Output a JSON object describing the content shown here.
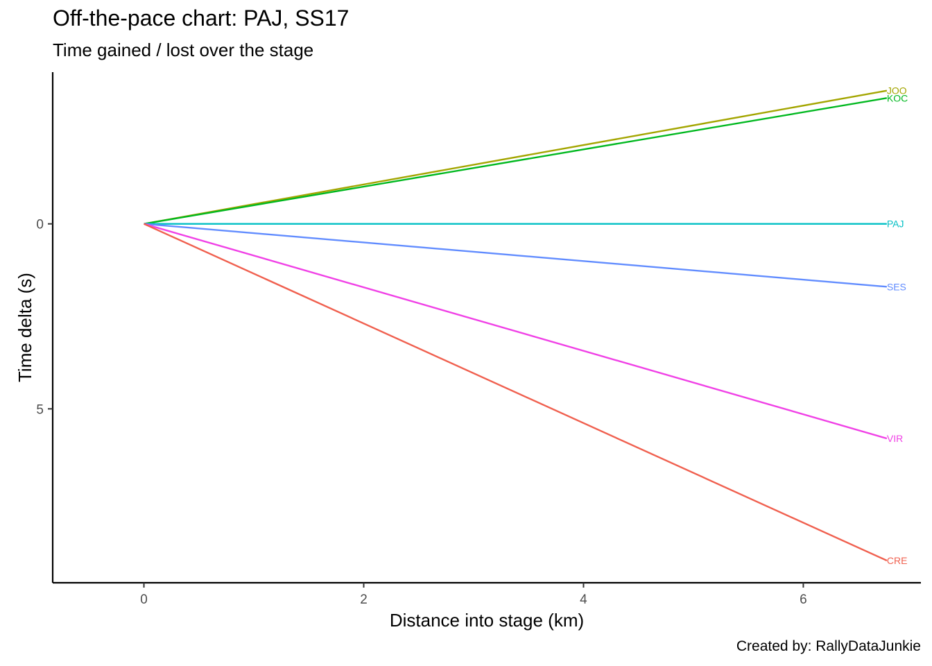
{
  "title": "Off-the-pace chart: PAJ, SS17",
  "subtitle": "Time gained / lost over the stage",
  "caption": "Created by: RallyDataJunkie",
  "chart_data": {
    "type": "line",
    "xlabel": "Distance into stage (km)",
    "ylabel": "Time delta (s)",
    "xlim": [
      -0.83,
      7.07
    ],
    "ylim": [
      -4.1,
      9.7
    ],
    "y_reversed": true,
    "x_ticks": [
      0,
      2,
      4,
      6
    ],
    "y_ticks": [
      0,
      5
    ],
    "grid": false,
    "legend": "none (labels at line ends)",
    "series": [
      {
        "name": "JOO",
        "color": "#A3A500",
        "x": [
          0,
          6.76
        ],
        "y": [
          0,
          -3.6
        ]
      },
      {
        "name": "KOC",
        "color": "#00B81F",
        "x": [
          0,
          6.76
        ],
        "y": [
          0,
          -3.4
        ]
      },
      {
        "name": "PAJ",
        "color": "#00BFC4",
        "x": [
          0,
          6.76
        ],
        "y": [
          0,
          0
        ]
      },
      {
        "name": "SES",
        "color": "#618CFF",
        "x": [
          0,
          6.76
        ],
        "y": [
          0,
          1.7
        ]
      },
      {
        "name": "VIR",
        "color": "#F041E6",
        "x": [
          0,
          6.76
        ],
        "y": [
          0,
          5.8
        ]
      },
      {
        "name": "CRE",
        "color": "#F0604F",
        "x": [
          0,
          6.76
        ],
        "y": [
          0,
          9.1
        ]
      }
    ]
  }
}
